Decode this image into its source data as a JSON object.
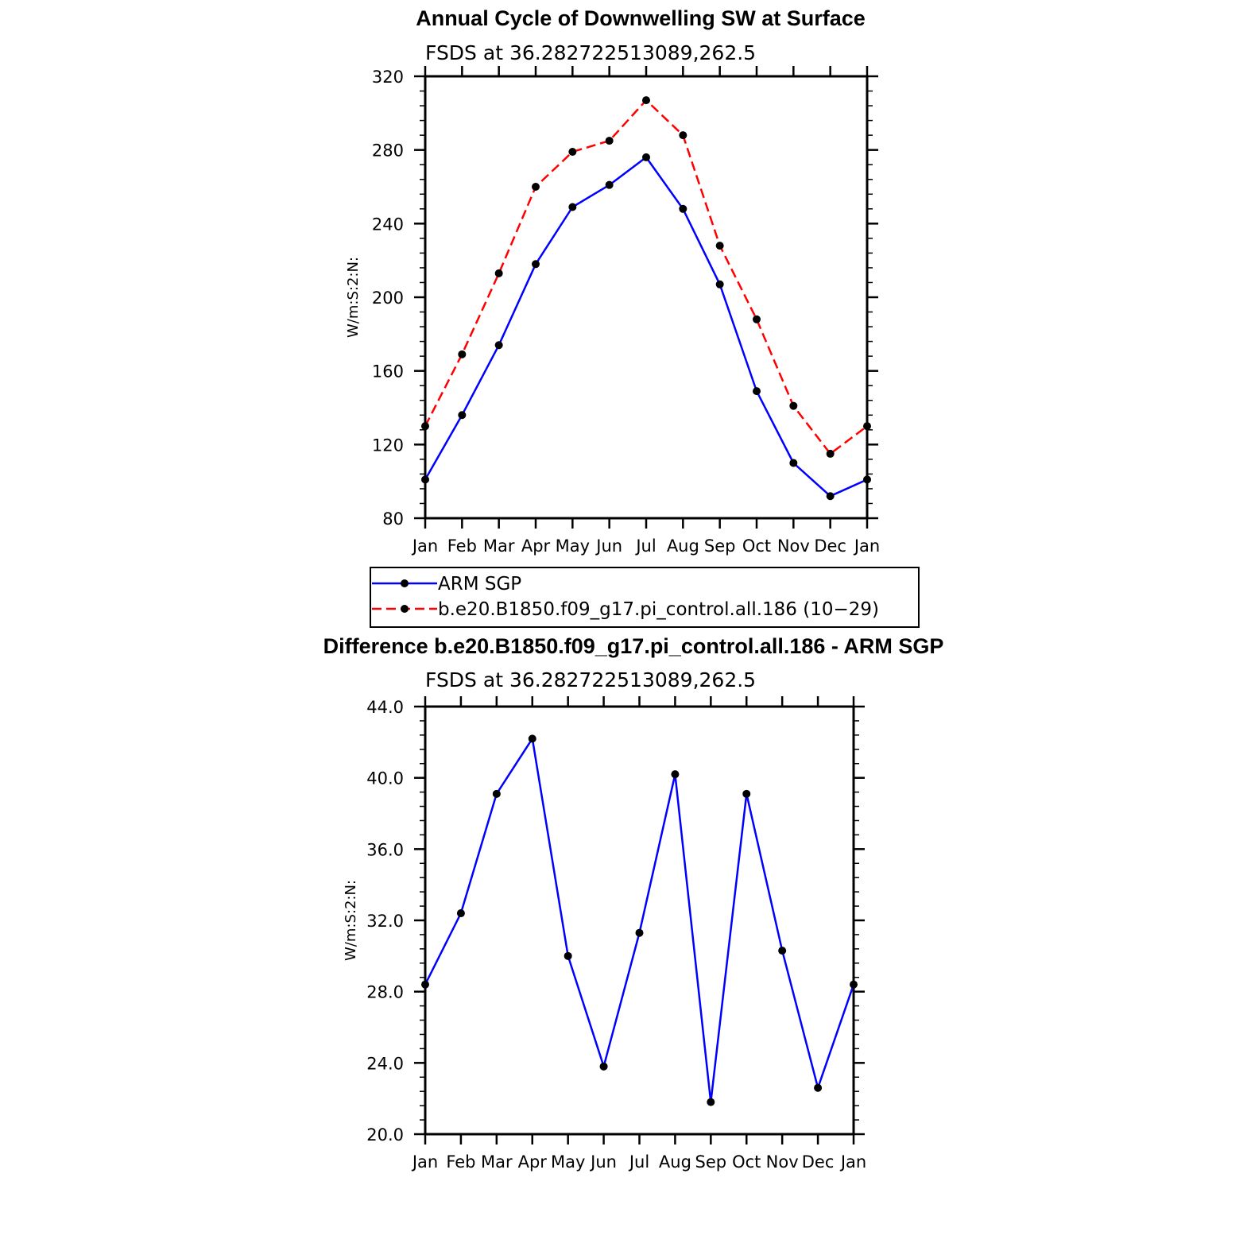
{
  "chart_data": [
    {
      "type": "line",
      "title": "Annual Cycle of Downwelling SW at Surface",
      "subtitle": "FSDS at 36.282722513089,262.5",
      "ylabel": "W/m:S:2:N:",
      "categories": [
        "Jan",
        "Feb",
        "Mar",
        "Apr",
        "May",
        "Jun",
        "Jul",
        "Aug",
        "Sep",
        "Oct",
        "Nov",
        "Dec",
        "Jan"
      ],
      "ylim": [
        80,
        320
      ],
      "yticks": [
        "80",
        "120",
        "160",
        "200",
        "240",
        "280",
        "320"
      ],
      "series": [
        {
          "name": "ARM SGP",
          "color": "#0000ff",
          "dash": "solid",
          "values": [
            101,
            136,
            174,
            218,
            249,
            261,
            276,
            248,
            207,
            149,
            110,
            92,
            101
          ]
        },
        {
          "name": "b.e20.B1850.f09_g17.pi_control.all.186 (10−29)",
          "color": "#ff0000",
          "dash": "dashed",
          "values": [
            130,
            169,
            213,
            260,
            279,
            285,
            307,
            288,
            228,
            188,
            141,
            115,
            130
          ]
        }
      ],
      "legend": "below"
    },
    {
      "type": "line",
      "title": "Difference b.e20.B1850.f09_g17.pi_control.all.186 - ARM SGP",
      "subtitle": "FSDS at 36.282722513089,262.5",
      "ylabel": "W/m:S:2:N:",
      "categories": [
        "Jan",
        "Feb",
        "Mar",
        "Apr",
        "May",
        "Jun",
        "Jul",
        "Aug",
        "Sep",
        "Oct",
        "Nov",
        "Dec",
        "Jan"
      ],
      "ylim": [
        20,
        44
      ],
      "yticks": [
        "20.0",
        "24.0",
        "28.0",
        "32.0",
        "36.0",
        "40.0",
        "44.0"
      ],
      "series": [
        {
          "color": "#0000ff",
          "dash": "solid",
          "values": [
            28.4,
            32.4,
            39.1,
            42.2,
            30.0,
            23.8,
            31.3,
            40.2,
            21.8,
            39.1,
            30.3,
            22.6,
            28.4
          ]
        }
      ]
    }
  ]
}
